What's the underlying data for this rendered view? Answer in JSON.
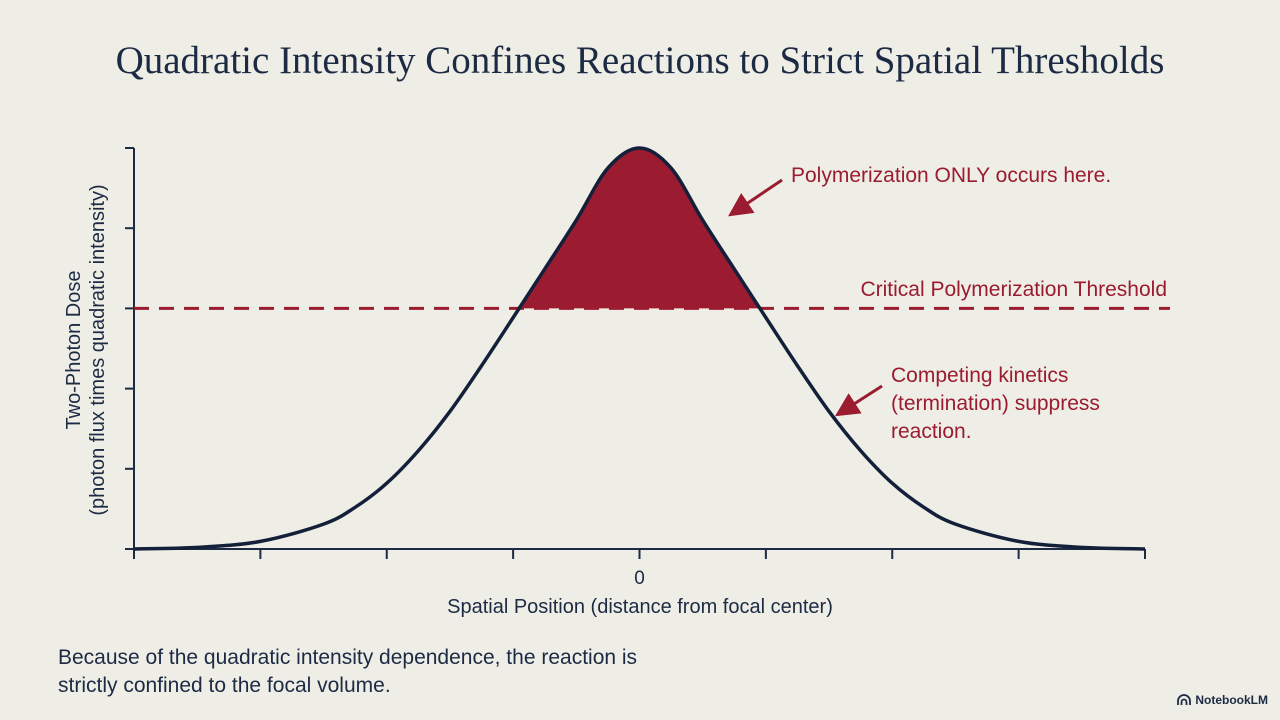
{
  "slide": {
    "title": "Quadratic Intensity Confines Reactions to Strict Spatial Thresholds",
    "footnote": "Because of the quadratic intensity dependence, the reaction is strictly confined to the focal volume.",
    "brand": "NotebookLM",
    "brand_icon": "notebooklm-logo-icon"
  },
  "chart_data": {
    "type": "line",
    "title": "",
    "xlabel": "Spatial Position (distance from focal center)",
    "ylabel_line1": "Two-Photon Dose",
    "ylabel_line2": "(photon flux times quadratic intensity)",
    "x_tick_labels": [
      {
        "x": 0,
        "label": "0"
      }
    ],
    "x_ticks": [
      -4,
      -3,
      -2,
      -1,
      0,
      1,
      2,
      3,
      4
    ],
    "xlim": [
      -4,
      4
    ],
    "y_ticks": [
      0,
      0.2,
      0.4,
      0.6,
      0.8,
      1.0
    ],
    "ylim": [
      0,
      1
    ],
    "grid": false,
    "series": [
      {
        "name": "",
        "x": [
          -4.0,
          -3.5,
          -3.0,
          -2.5,
          -2.25,
          -2.0,
          -1.75,
          -1.5,
          -1.25,
          -1.0,
          -0.75,
          -0.5,
          -0.25,
          0.0,
          0.25,
          0.5,
          0.75,
          1.0,
          1.25,
          1.5,
          1.75,
          2.0,
          2.25,
          2.5,
          3.0,
          3.5,
          4.0
        ],
        "y": [
          0.0,
          0.004,
          0.019,
          0.062,
          0.104,
          0.164,
          0.245,
          0.343,
          0.457,
          0.577,
          0.698,
          0.82,
          0.95,
          1.0,
          0.95,
          0.82,
          0.698,
          0.577,
          0.457,
          0.343,
          0.245,
          0.164,
          0.104,
          0.062,
          0.019,
          0.004,
          0.0
        ],
        "color": "#14203a"
      }
    ],
    "threshold": {
      "y": 0.6,
      "label": "Critical Polymerization Threshold",
      "color": "#9b1b30"
    },
    "annotations": [
      {
        "text": [
          "Polymerization ONLY occurs here."
        ],
        "color": "#9b1b30"
      },
      {
        "text": [
          "Competing kinetics",
          "(termination) suppress",
          "reaction."
        ],
        "color": "#9b1b30"
      }
    ],
    "fill_color": "#9b1b30"
  }
}
